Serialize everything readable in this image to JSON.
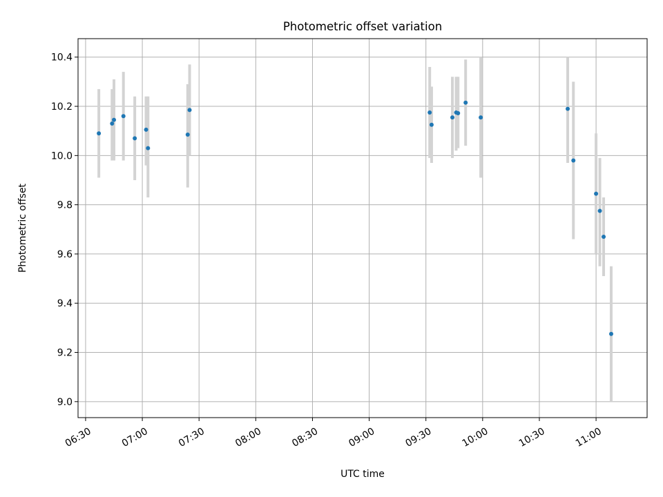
{
  "chart_data": {
    "type": "scatter",
    "title": "Photometric offset variation",
    "xlabel": "UTC time",
    "ylabel": "Photometric offset",
    "xlim": [
      "06:26",
      "11:27"
    ],
    "ylim": [
      8.935,
      10.475
    ],
    "x_ticks": [
      "06:30",
      "07:00",
      "07:30",
      "08:00",
      "08:30",
      "09:00",
      "09:30",
      "10:00",
      "10:30",
      "11:00"
    ],
    "y_ticks": [
      9.0,
      9.2,
      9.4,
      9.6,
      9.8,
      10.0,
      10.2,
      10.4
    ],
    "grid": true,
    "colors": {
      "points": "#1f77b4",
      "errorbars": "#d3d3d3",
      "grid": "#b0b0b0"
    },
    "series": [
      {
        "points": [
          {
            "x": "06:37",
            "y": 10.09,
            "ylo": 9.91,
            "yhi": 10.27
          },
          {
            "x": "06:44",
            "y": 10.13,
            "ylo": 9.98,
            "yhi": 10.27
          },
          {
            "x": "06:45",
            "y": 10.145,
            "ylo": 9.98,
            "yhi": 10.31
          },
          {
            "x": "06:50",
            "y": 10.16,
            "ylo": 9.98,
            "yhi": 10.34
          },
          {
            "x": "06:56",
            "y": 10.07,
            "ylo": 9.9,
            "yhi": 10.24
          },
          {
            "x": "07:02",
            "y": 10.105,
            "ylo": 9.96,
            "yhi": 10.24
          },
          {
            "x": "07:03",
            "y": 10.03,
            "ylo": 9.83,
            "yhi": 10.24
          },
          {
            "x": "07:24",
            "y": 10.085,
            "ylo": 9.87,
            "yhi": 10.29
          },
          {
            "x": "07:25",
            "y": 10.185,
            "ylo": 10.0,
            "yhi": 10.37
          },
          {
            "x": "09:32",
            "y": 10.175,
            "ylo": 9.99,
            "yhi": 10.36
          },
          {
            "x": "09:33",
            "y": 10.125,
            "ylo": 9.97,
            "yhi": 10.28
          },
          {
            "x": "09:44",
            "y": 10.155,
            "ylo": 9.99,
            "yhi": 10.32
          },
          {
            "x": "09:46",
            "y": 10.175,
            "ylo": 10.02,
            "yhi": 10.32
          },
          {
            "x": "09:47",
            "y": 10.172,
            "ylo": 10.03,
            "yhi": 10.32
          },
          {
            "x": "09:51",
            "y": 10.215,
            "ylo": 10.04,
            "yhi": 10.39
          },
          {
            "x": "09:59",
            "y": 10.155,
            "ylo": 9.91,
            "yhi": 10.4
          },
          {
            "x": "10:45",
            "y": 10.19,
            "ylo": 9.97,
            "yhi": 10.4
          },
          {
            "x": "10:48",
            "y": 9.98,
            "ylo": 9.66,
            "yhi": 10.3
          },
          {
            "x": "11:00",
            "y": 9.845,
            "ylo": 9.6,
            "yhi": 10.09
          },
          {
            "x": "11:02",
            "y": 9.775,
            "ylo": 9.55,
            "yhi": 9.99
          },
          {
            "x": "11:04",
            "y": 9.67,
            "ylo": 9.51,
            "yhi": 9.83
          },
          {
            "x": "11:08",
            "y": 9.275,
            "ylo": 9.0,
            "yhi": 9.55
          }
        ]
      }
    ]
  }
}
